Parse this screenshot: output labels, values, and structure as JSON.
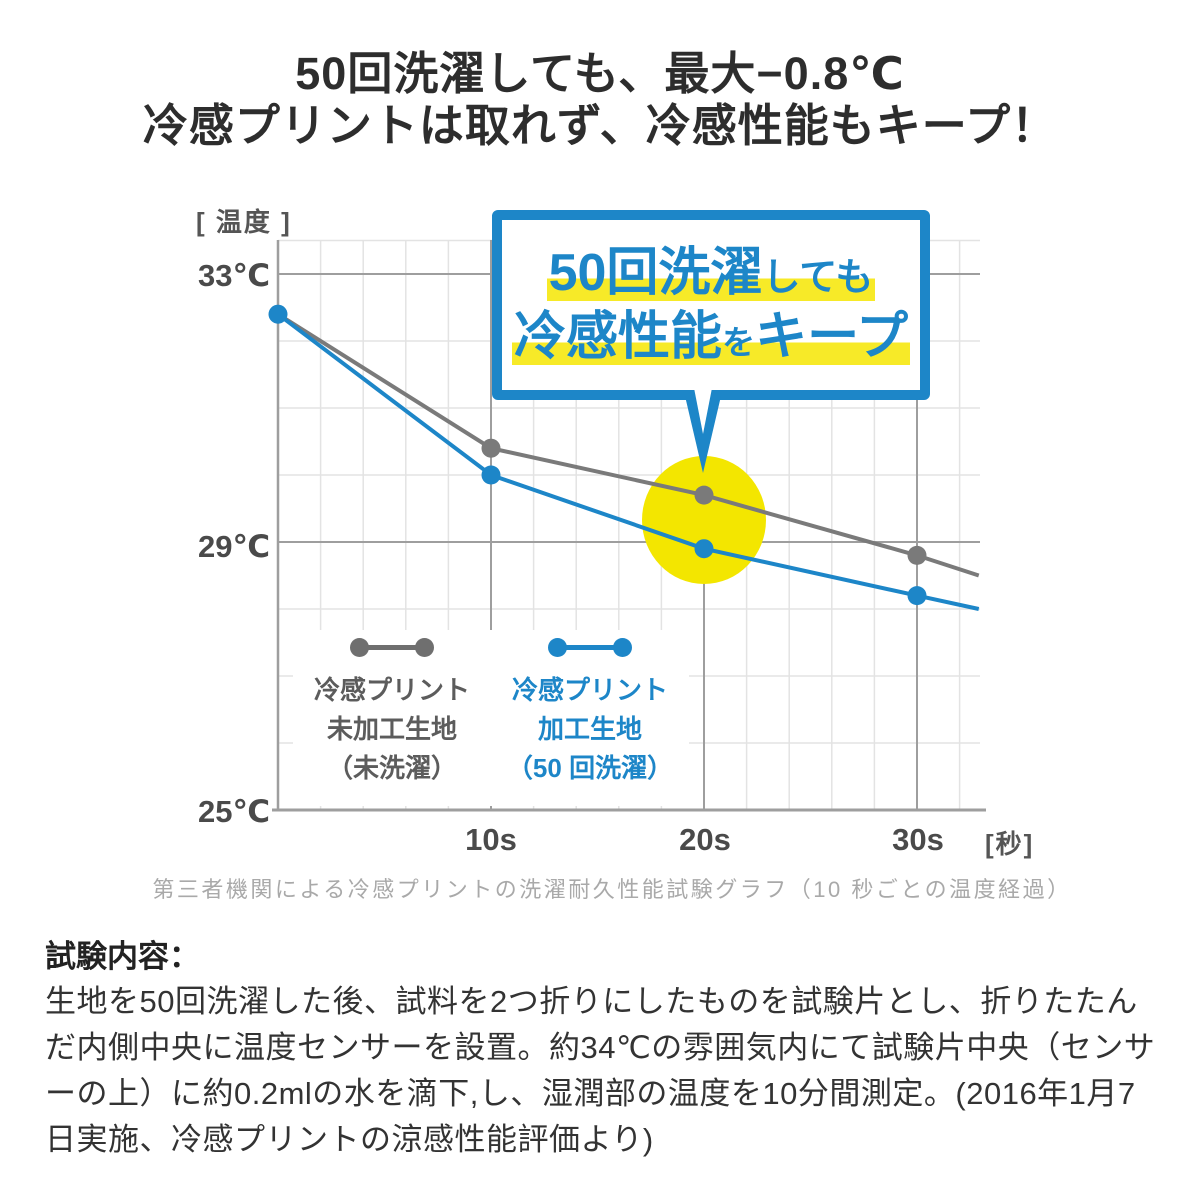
{
  "title": {
    "line1": "50回洗濯しても、最大−0.8℃",
    "line2": "冷感プリントは取れず、冷感性能もキープ！"
  },
  "chart": {
    "y_axis_unit": "[ 温度 ]",
    "x_axis_unit": "[秒]",
    "y_ticks": {
      "t33": "33℃",
      "t29": "29℃",
      "t25": "25℃"
    },
    "x_ticks": {
      "s10": "10s",
      "s20": "20s",
      "s30": "30s"
    },
    "callout": {
      "line1_big": "50回洗濯",
      "line1_small": "しても",
      "line2_big1": "冷感性能",
      "line2_small": "を",
      "line2_big2": "キープ"
    },
    "legend": {
      "untreated": {
        "line1": "冷感プリント",
        "line2": "未加工生地",
        "line3": "（未洗濯）"
      },
      "treated": {
        "line1": "冷感プリント",
        "line2": "加工生地",
        "line3": "（50 回洗濯）"
      }
    },
    "caption": "第三者機関による冷感プリントの洗濯耐久性能試験グラフ（10 秒ごとの温度経過）"
  },
  "chart_data": {
    "type": "line",
    "title": "50回洗濯しても冷感性能をキープ",
    "xlabel": "秒",
    "ylabel": "温度",
    "x": [
      0,
      10,
      20,
      30,
      32.9
    ],
    "series": [
      {
        "name": "冷感プリント未加工生地（未洗濯）",
        "color": "#7a7a7a",
        "values": [
          32.4,
          30.4,
          29.7,
          28.8,
          28.5
        ],
        "dots": [
          false,
          true,
          true,
          true,
          false
        ]
      },
      {
        "name": "冷感プリント加工生地（50回洗濯）",
        "color": "#1d86c8",
        "values": [
          32.4,
          30.0,
          28.9,
          28.2,
          28.0
        ],
        "dots": [
          true,
          true,
          true,
          true,
          false
        ]
      }
    ],
    "ylim": [
      25,
      33.5
    ],
    "xlim": [
      0,
      33
    ],
    "y_major_ticks": [
      25,
      29,
      33
    ],
    "y_minor_step": 1,
    "x_major_ticks": [
      10,
      20,
      30
    ],
    "x_minor_step": 2,
    "grid": true,
    "legend_position": "inside-bottom-left",
    "annotation": {
      "highlight_at_x": 20,
      "note": "50回洗濯しても冷感性能をキープ",
      "max_difference_c": -0.8
    }
  },
  "colors": {
    "blue": "#1d86c8",
    "gray": "#7a7a7a",
    "yellow_circle": "#f3e600",
    "yellow_highlight": "#f7ea28",
    "grid_minor": "#e3e3e3",
    "grid_major": "#9e9e9e"
  },
  "test_description": {
    "heading": "試験内容：",
    "body": "生地を50回洗濯した後、試料を2つ折りにしたものを試験片とし、折りたたんだ内側中央に温度センサーを設置。約34℃の雰囲気内にて試験片中央（センサーの上）に約0.2mlの水を滴下,し、湿潤部の温度を10分間測定。(2016年1月7日実施、冷感プリントの涼感性能評価より)"
  }
}
